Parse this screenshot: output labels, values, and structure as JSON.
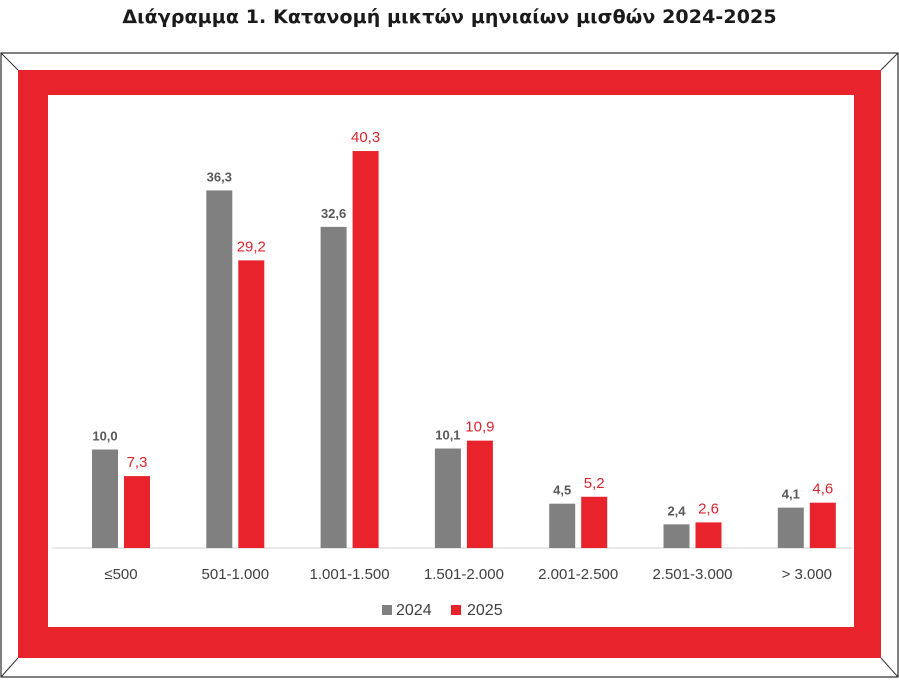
{
  "title": "Διάγραμμα 1. Κατανομή μικτών μηνιαίων μισθών 2024-2025",
  "colors": {
    "frame": "#e8232b",
    "series_2024": "#808080",
    "series_2025": "#e8232b",
    "label_2024": "#595959",
    "label_2025": "#d9262e",
    "axis_text": "#404040"
  },
  "chart_data": {
    "type": "bar",
    "categories": [
      "≤500",
      "501-1.000",
      "1.001-1.500",
      "1.501-2.000",
      "2.001-2.500",
      "2.501-3.000",
      "> 3.000"
    ],
    "series": [
      {
        "name": "2024",
        "values": [
          10.0,
          36.3,
          32.6,
          10.1,
          4.5,
          2.4,
          4.1
        ],
        "labels": [
          "10,0",
          "36,3",
          "32,6",
          "10,1",
          "4,5",
          "2,4",
          "4,1"
        ]
      },
      {
        "name": "2025",
        "values": [
          7.3,
          29.2,
          40.3,
          10.9,
          5.2,
          2.6,
          4.6
        ],
        "labels": [
          "7,3",
          "29,2",
          "40,3",
          "10,9",
          "5,2",
          "2,6",
          "4,6"
        ]
      }
    ],
    "ylim": [
      0,
      45
    ],
    "grid": false,
    "legend": "bottom"
  }
}
